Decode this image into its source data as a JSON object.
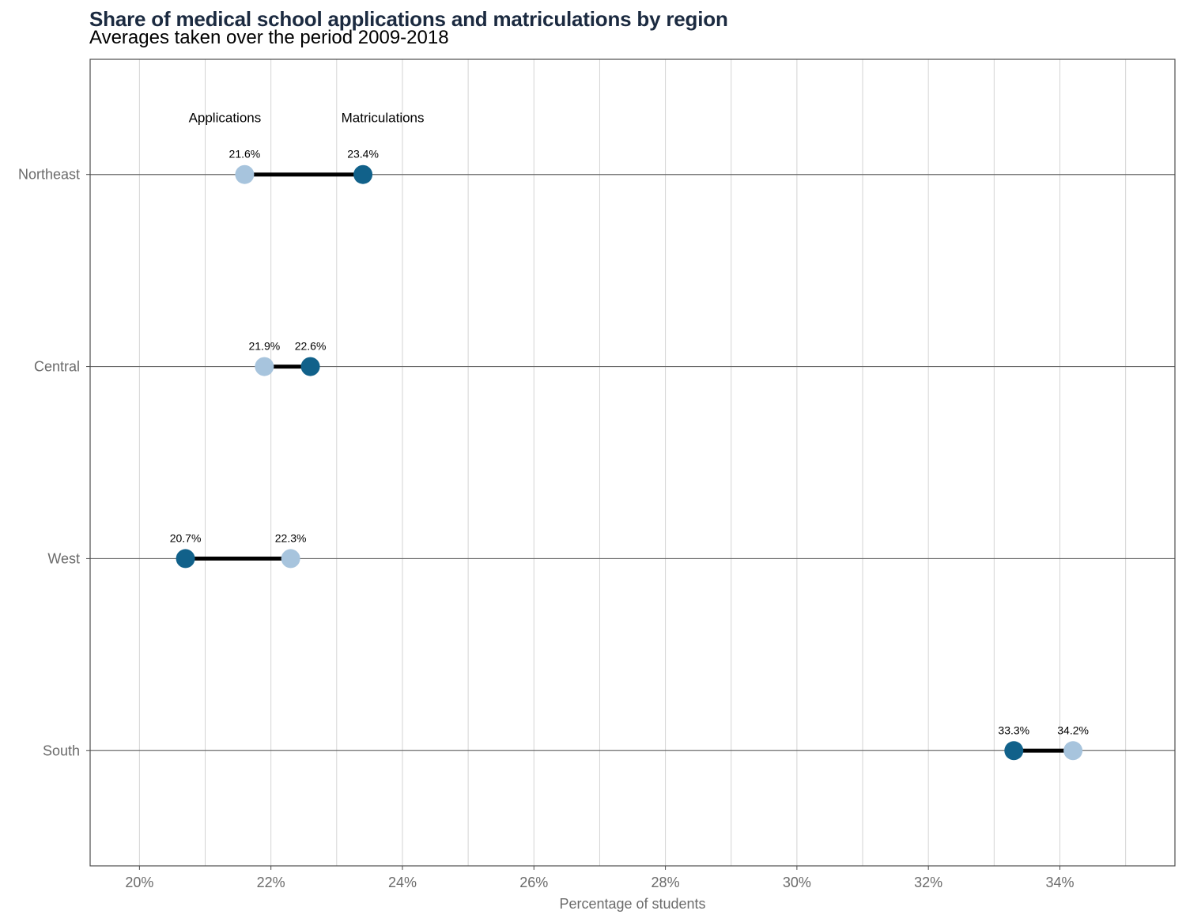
{
  "title": "Share of medical school applications and matriculations by region",
  "subtitle": "Averages taken over the period 2009-2018",
  "chart_data": {
    "type": "dumbbell",
    "title": "Share of medical school applications and matriculations by region",
    "subtitle": "Averages taken over the period 2009-2018",
    "xlabel": "Percentage of students",
    "ylabel": "",
    "xlim": [
      19.25,
      35.75
    ],
    "x_ticks": [
      20,
      22,
      24,
      26,
      28,
      30,
      32,
      34
    ],
    "x_tick_labels": [
      "20%",
      "22%",
      "24%",
      "26%",
      "28%",
      "30%",
      "32%",
      "34%"
    ],
    "grid": true,
    "categories": [
      "Northeast",
      "Central",
      "West",
      "South"
    ],
    "series": [
      {
        "name": "Applications",
        "color": "#a7c4dd",
        "values": [
          21.6,
          21.9,
          22.3,
          34.2
        ],
        "labels": [
          "21.6%",
          "21.9%",
          "22.3%",
          "34.2%"
        ]
      },
      {
        "name": "Matriculations",
        "color": "#11618a",
        "values": [
          23.4,
          22.6,
          20.7,
          33.3
        ],
        "labels": [
          "23.4%",
          "22.6%",
          "20.7%",
          "33.3%"
        ]
      }
    ],
    "connector_color": "#000000",
    "legend": "annotations above top row"
  }
}
